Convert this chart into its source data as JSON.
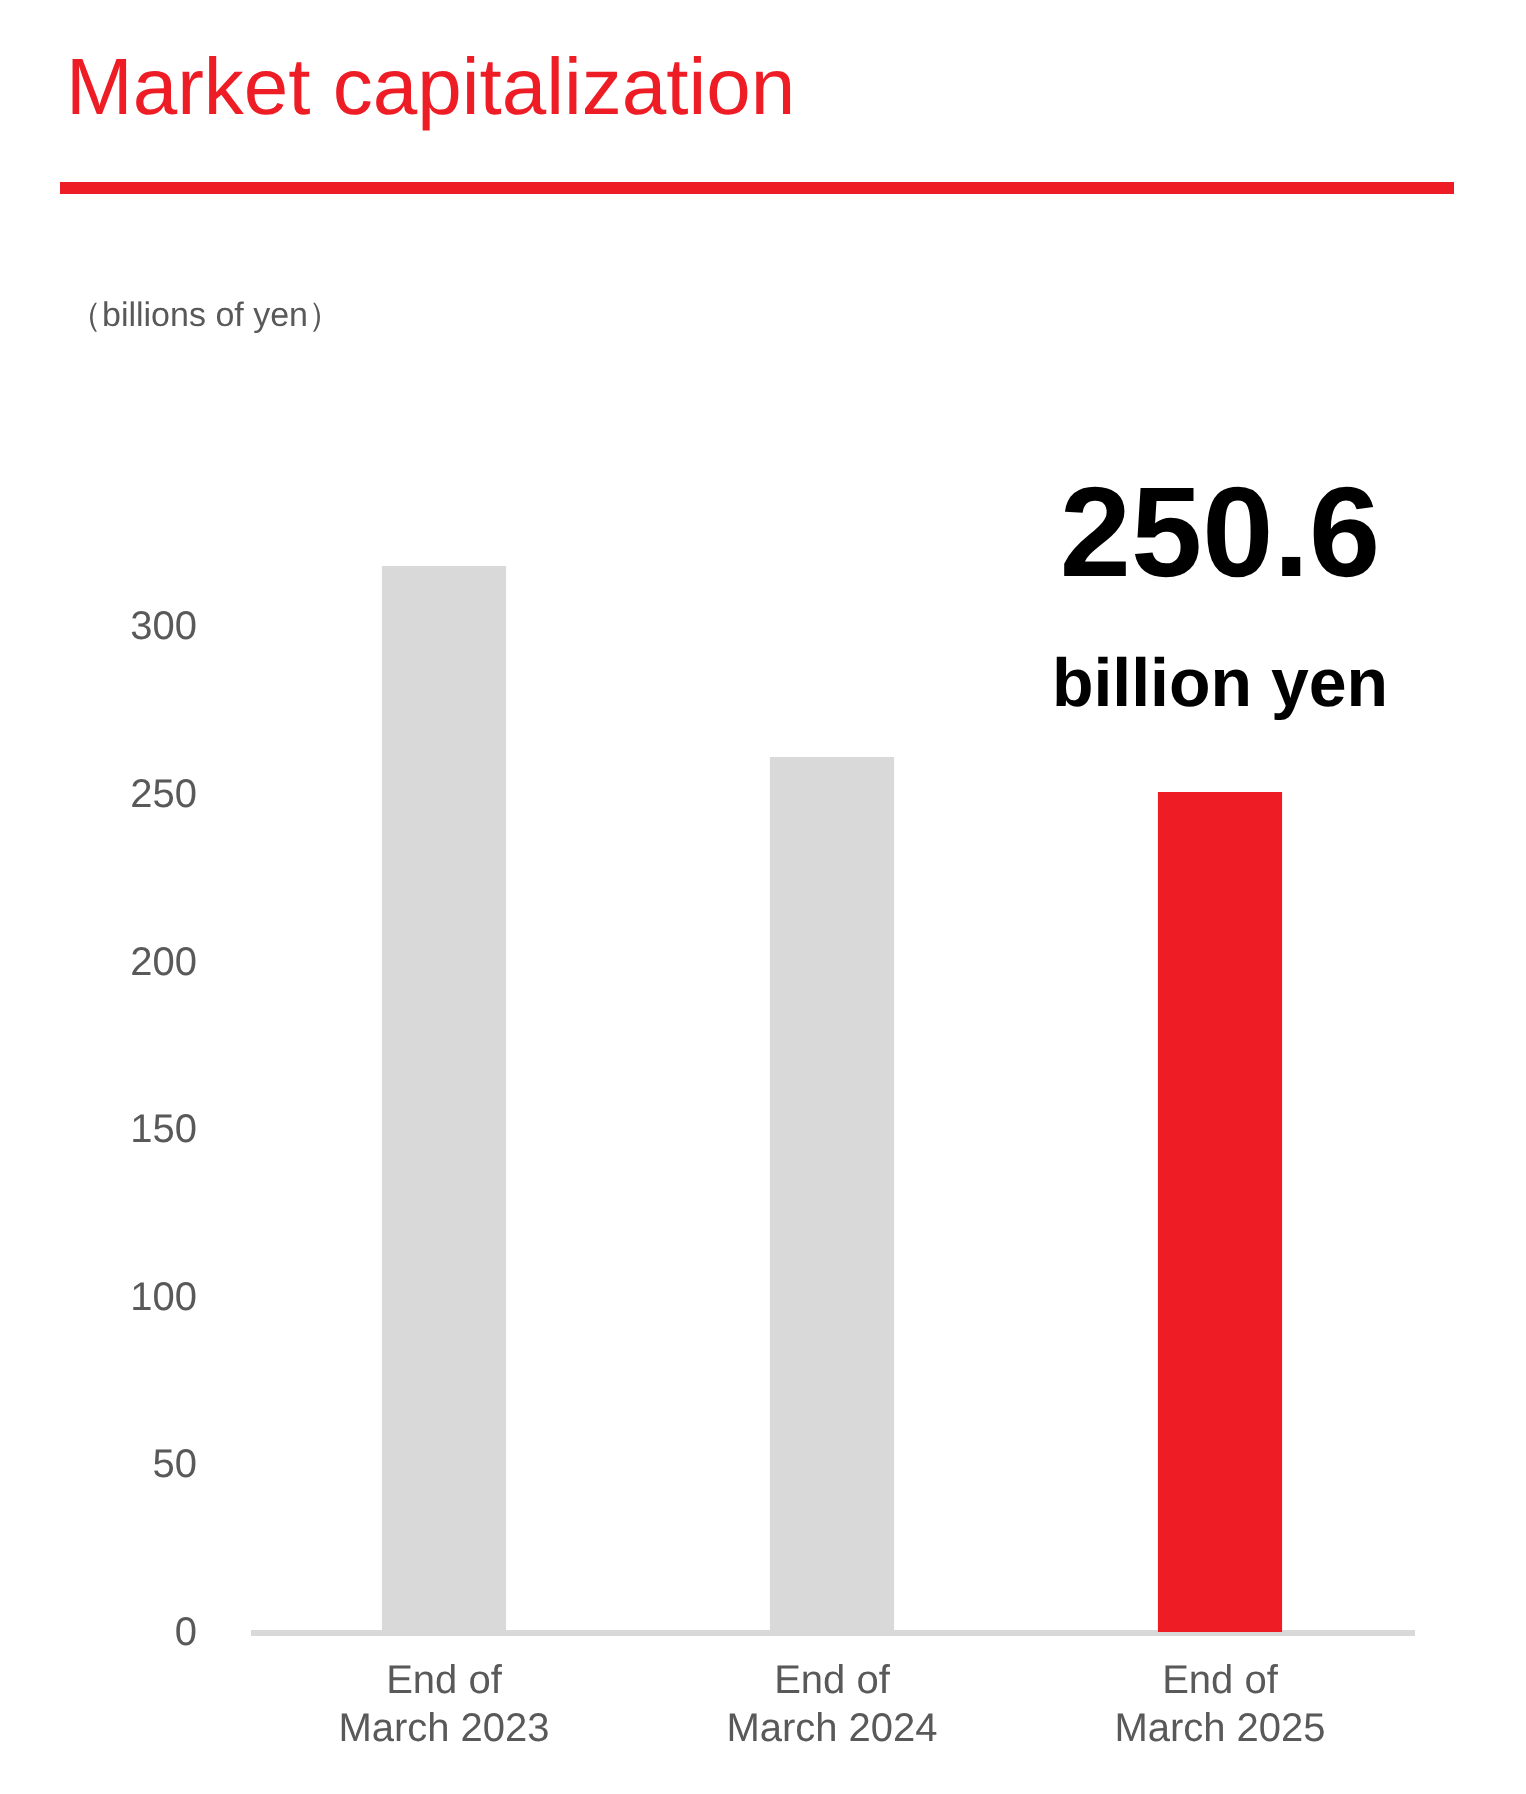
{
  "chart_data": {
    "type": "bar",
    "title": "Market capitalization",
    "categories": [
      "End of\nMarch 2023",
      "End of\nMarch 2024",
      "End of\nMarch 2025"
    ],
    "values": [
      318,
      261,
      250.6
    ],
    "colors": [
      "#d9d9d9",
      "#d9d9d9",
      "#ee1c25"
    ],
    "ylim": [
      0,
      318
    ],
    "yticks": [
      0,
      50,
      100,
      150,
      200,
      250,
      300
    ],
    "grid": false,
    "legend": false,
    "annotations": [
      "（billions of yen）",
      {
        "text": "250.6\nbillion yen",
        "x": "End of\nMarch 2025",
        "y": 250.6
      }
    ]
  }
}
